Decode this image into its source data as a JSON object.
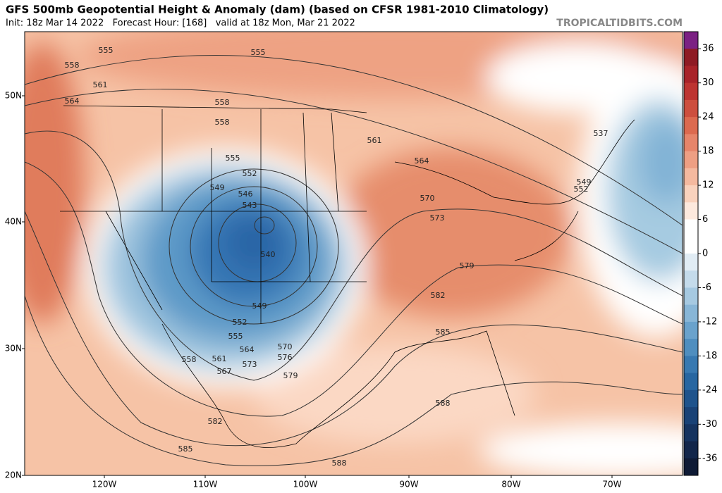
{
  "header": {
    "title": "GFS 500mb Geopotential Height & Anomaly (dam) (based on CFSR 1981-2010 Climatology)",
    "subtitle": "Init: 18z Mar 14 2022   Forecast Hour: [168]   valid at 18z Mon, Mar 21 2022",
    "source": "TROPICALTIDBITS.COM"
  },
  "map": {
    "lat_labels": [
      "50N",
      "40N",
      "30N",
      "20N"
    ],
    "lon_labels": [
      "120W",
      "110W",
      "100W",
      "90W",
      "80W",
      "70W"
    ],
    "contour_labels": [
      "555",
      "555",
      "558",
      "561",
      "564",
      "558",
      "558",
      "555",
      "552",
      "549",
      "546",
      "543",
      "540",
      "549",
      "552",
      "555",
      "558",
      "561",
      "564",
      "567",
      "573",
      "570",
      "576",
      "579",
      "582",
      "585",
      "582",
      "585",
      "588",
      "588",
      "570",
      "573",
      "579",
      "561",
      "564",
      "537",
      "549",
      "552"
    ]
  },
  "colorbar": {
    "ticks": [
      36,
      30,
      24,
      18,
      12,
      6,
      0,
      -6,
      -12,
      -18,
      -24,
      -30,
      -36
    ]
  }
}
